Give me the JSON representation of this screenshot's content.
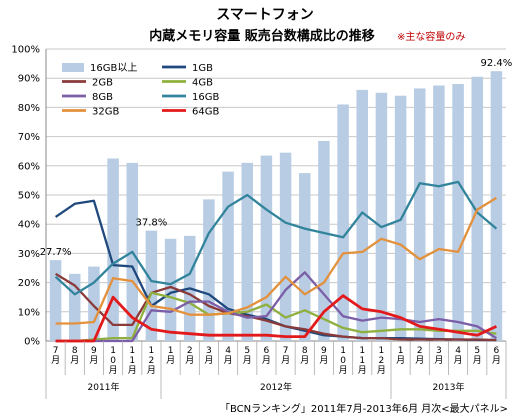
{
  "chart_data": {
    "type": "bar+line",
    "title_line1": "スマートフォン",
    "title_line2": "内蔵メモリ容量 販売台数構成比の推移",
    "note": "※主な容量のみ",
    "source": "「BCNランキング」2011年7月-2013年6月 月次<最大パネル>",
    "ylim": [
      0,
      100
    ],
    "yticks": [
      "0%",
      "10%",
      "20%",
      "30%",
      "40%",
      "50%",
      "60%",
      "70%",
      "80%",
      "90%",
      "100%"
    ],
    "categories": [
      "7月",
      "8月",
      "9月",
      "10月",
      "11月",
      "12月",
      "1月",
      "2月",
      "3月",
      "4月",
      "5月",
      "6月",
      "7月",
      "8月",
      "9月",
      "10月",
      "11月",
      "12月",
      "1月",
      "2月",
      "3月",
      "4月",
      "5月",
      "6月"
    ],
    "year_groups": [
      {
        "label": "2011年",
        "start": 0,
        "end": 5
      },
      {
        "label": "2012年",
        "start": 6,
        "end": 17
      },
      {
        "label": "2013年",
        "start": 18,
        "end": 23
      }
    ],
    "bar_series": {
      "name": "16GB以上",
      "color": "#b8cce4",
      "values": [
        27.7,
        23,
        25.5,
        62.5,
        61,
        37.8,
        35,
        36,
        48.5,
        58,
        61,
        63.5,
        64.5,
        57.5,
        68.5,
        81,
        86,
        85,
        84,
        86.5,
        87.5,
        88,
        90.5,
        92.4
      ]
    },
    "data_labels": [
      {
        "index": 0,
        "text": "27.7%"
      },
      {
        "index": 5,
        "text": "37.8%"
      },
      {
        "index": 23,
        "text": "92.4%"
      }
    ],
    "line_series": [
      {
        "name": "1GB",
        "color": "#1f497d",
        "values": [
          42.5,
          47,
          48,
          26,
          25.5,
          12,
          16.5,
          18,
          16,
          11,
          9,
          7.5,
          5,
          3.5,
          2,
          1.5,
          1,
          1,
          1,
          0.8,
          0.6,
          0.5,
          0.4,
          0.3
        ]
      },
      {
        "name": "2GB",
        "color": "#8b3a3a",
        "values": [
          23,
          19,
          12,
          5.5,
          5.5,
          16.5,
          18.5,
          16,
          12,
          9.5,
          8.5,
          7,
          5,
          4,
          2.5,
          1.5,
          1,
          1,
          0.5,
          0.5,
          0.5,
          0.5,
          0.5,
          0.3
        ]
      },
      {
        "name": "4GB",
        "color": "#8fb03e",
        "values": [
          0,
          0,
          0.5,
          1,
          1,
          16.5,
          15,
          13,
          9,
          9.5,
          10,
          12.5,
          8,
          10.5,
          7.5,
          4.5,
          3,
          3.5,
          4,
          4,
          3.5,
          3.5,
          3.5,
          2.5
        ]
      },
      {
        "name": "8GB",
        "color": "#7b5ea7",
        "values": [
          0,
          0,
          0,
          0,
          0,
          10.5,
          10,
          13.5,
          13.5,
          10,
          8,
          8.5,
          17.5,
          23.5,
          16,
          8.5,
          7,
          8,
          7.5,
          6.5,
          7.5,
          6.5,
          5,
          1
        ]
      },
      {
        "name": "16GB",
        "color": "#31849b",
        "values": [
          22,
          16,
          20,
          26.5,
          30.5,
          20.5,
          19.5,
          23,
          37,
          46,
          50,
          45,
          40.5,
          38.5,
          37,
          35.5,
          44,
          39,
          41.5,
          54,
          53,
          54.5,
          44,
          38.5
        ]
      },
      {
        "name": "32GB",
        "color": "#e3913c",
        "values": [
          6,
          6,
          6.5,
          21.5,
          20.5,
          12,
          11,
          9,
          9,
          9.5,
          11.5,
          15,
          22,
          16,
          20,
          30,
          30.5,
          35,
          33,
          28,
          31.5,
          30.5,
          45,
          49
        ]
      },
      {
        "name": "64GB",
        "color": "#e31a1c",
        "values": [
          0,
          0,
          0,
          15,
          8,
          4,
          3,
          2.5,
          2,
          2,
          2,
          2,
          1.5,
          1.5,
          10,
          15.5,
          11,
          10,
          8,
          5,
          4,
          3,
          2,
          5
        ]
      }
    ]
  }
}
